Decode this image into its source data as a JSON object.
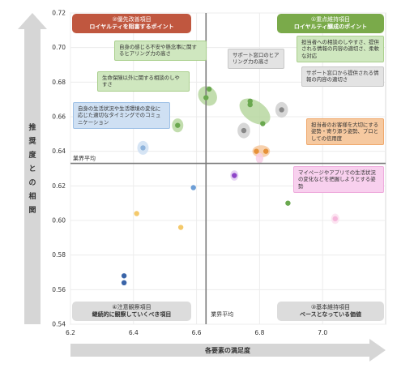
{
  "chart_data": {
    "type": "scatter",
    "xlabel": "各要素の満足度",
    "ylabel": "推奨度との相関",
    "xlim": [
      6.2,
      7.2
    ],
    "ylim": [
      0.54,
      0.72
    ],
    "xticks": [
      "6.2",
      "6.4",
      "6.6",
      "6.8",
      "7.0"
    ],
    "yticks": [
      "0.54",
      "0.56",
      "0.58",
      "0.60",
      "0.62",
      "0.64",
      "0.66",
      "0.68",
      "0.70",
      "0.72"
    ],
    "reference_lines": {
      "x_label": "業界平均",
      "y_label": "業界平均",
      "x": 6.63,
      "y": 0.633
    },
    "quadrants": [
      {
        "title": "②優先改善項目",
        "subtitle": "ロイヤルティを阻害するポイント",
        "color": "#c0573f",
        "text_color": "#ffffff"
      },
      {
        "title": "①重点維持項目",
        "subtitle": "ロイヤルティ醸成のポイント",
        "color": "#7aaa4a",
        "text_color": "#ffffff"
      },
      {
        "title": "④注意観察項目",
        "subtitle": "継続的に観察していくべき項目",
        "color": "#dcdcdc",
        "text_color": "#333333"
      },
      {
        "title": "③基本維持項目",
        "subtitle": "ベースとなっている価値",
        "color": "#dcdcdc",
        "text_color": "#333333"
      }
    ],
    "points": [
      {
        "x": 6.64,
        "y": 0.676,
        "color": "#6aa84f"
      },
      {
        "x": 6.63,
        "y": 0.671,
        "color": "#6aa84f"
      },
      {
        "x": 6.54,
        "y": 0.655,
        "color": "#6aa84f"
      },
      {
        "x": 6.77,
        "y": 0.669,
        "color": "#6aa84f"
      },
      {
        "x": 6.77,
        "y": 0.667,
        "color": "#6aa84f"
      },
      {
        "x": 6.81,
        "y": 0.656,
        "color": "#6aa84f"
      },
      {
        "x": 6.75,
        "y": 0.652,
        "color": "#888888"
      },
      {
        "x": 6.87,
        "y": 0.664,
        "color": "#888888"
      },
      {
        "x": 6.79,
        "y": 0.64,
        "color": "#e69138"
      },
      {
        "x": 6.82,
        "y": 0.64,
        "color": "#e69138"
      },
      {
        "x": 6.43,
        "y": 0.642,
        "color": "#8fb4dc"
      },
      {
        "x": 6.72,
        "y": 0.626,
        "color": "#8e44c8"
      },
      {
        "x": 6.59,
        "y": 0.619,
        "color": "#6d9ed6"
      },
      {
        "x": 6.89,
        "y": 0.61,
        "color": "#6aa84f"
      },
      {
        "x": 6.41,
        "y": 0.604,
        "color": "#f4c96b"
      },
      {
        "x": 6.55,
        "y": 0.596,
        "color": "#f4c96b"
      },
      {
        "x": 7.04,
        "y": 0.601,
        "color": "#f5b8dc"
      },
      {
        "x": 6.37,
        "y": 0.568,
        "color": "#3a64a8"
      },
      {
        "x": 6.37,
        "y": 0.564,
        "color": "#3a64a8"
      }
    ],
    "highlights": [
      {
        "cx": 6.635,
        "cy": 0.672,
        "rx": 0.028,
        "ry": 0.006,
        "rotate": -40,
        "color": "#b7d7a0"
      },
      {
        "cx": 6.54,
        "cy": 0.655,
        "rx": 0.018,
        "ry": 0.004,
        "rotate": 0,
        "color": "#b7d7a0"
      },
      {
        "cx": 6.785,
        "cy": 0.663,
        "rx": 0.055,
        "ry": 0.006,
        "rotate": 35,
        "color": "#b7d7a0"
      },
      {
        "cx": 6.75,
        "cy": 0.652,
        "rx": 0.02,
        "ry": 0.0045,
        "rotate": 0,
        "color": "#d0d0d0"
      },
      {
        "cx": 6.87,
        "cy": 0.664,
        "rx": 0.02,
        "ry": 0.0045,
        "rotate": 0,
        "color": "#d0d0d0"
      },
      {
        "cx": 6.805,
        "cy": 0.64,
        "rx": 0.028,
        "ry": 0.0035,
        "rotate": 0,
        "color": "#f6c9a0"
      },
      {
        "cx": 6.43,
        "cy": 0.642,
        "rx": 0.018,
        "ry": 0.004,
        "rotate": 0,
        "color": "#cfe0f3"
      },
      {
        "cx": 6.72,
        "cy": 0.626,
        "rx": 0.013,
        "ry": 0.003,
        "rotate": 0,
        "color": "#e2ccf1"
      },
      {
        "cx": 7.04,
        "cy": 0.601,
        "rx": 0.013,
        "ry": 0.003,
        "rotate": 0,
        "color": "#fbe0ef"
      },
      {
        "cx": 6.8,
        "cy": 0.636,
        "rx": 0.012,
        "ry": 0.003,
        "rotate": 0,
        "color": "#f8d0e8"
      }
    ],
    "annotations": [
      {
        "text": "自身の感じる不安や懸念事に関するヒアリング力の高さ",
        "bg": "#cfe7bf",
        "border": "#a9cf8c"
      },
      {
        "text": "生命保険以外に関する相談のしやすさ",
        "bg": "#cfe7bf",
        "border": "#a9cf8c"
      },
      {
        "text": "自身の生活状況や生活環境の変化に応じた適切なタイミングでのコミュニケーション",
        "bg": "#cfe0f3",
        "border": "#9fc1e6"
      },
      {
        "text": "サポート窓口のヒアリング力の高さ",
        "bg": "#e3e3e3",
        "border": "#c8c8c8"
      },
      {
        "text": "担当者への相談のしやすさ、提供される情報の内容の適切さ、柔軟な対応",
        "bg": "#cfe7bf",
        "border": "#a9cf8c"
      },
      {
        "text": "サポート窓口から提供される情報の内容の適切さ",
        "bg": "#e3e3e3",
        "border": "#c8c8c8"
      },
      {
        "text": "担当者のお客様を大切にする姿勢・寄り添う姿勢、プロとしての信用度",
        "bg": "#f6c9a0",
        "border": "#efa76a"
      },
      {
        "text": "マイページやアプリでの生活状況の変化などを把握しようとする姿勢",
        "bg": "#f8d0ee",
        "border": "#eeaadc"
      }
    ]
  }
}
